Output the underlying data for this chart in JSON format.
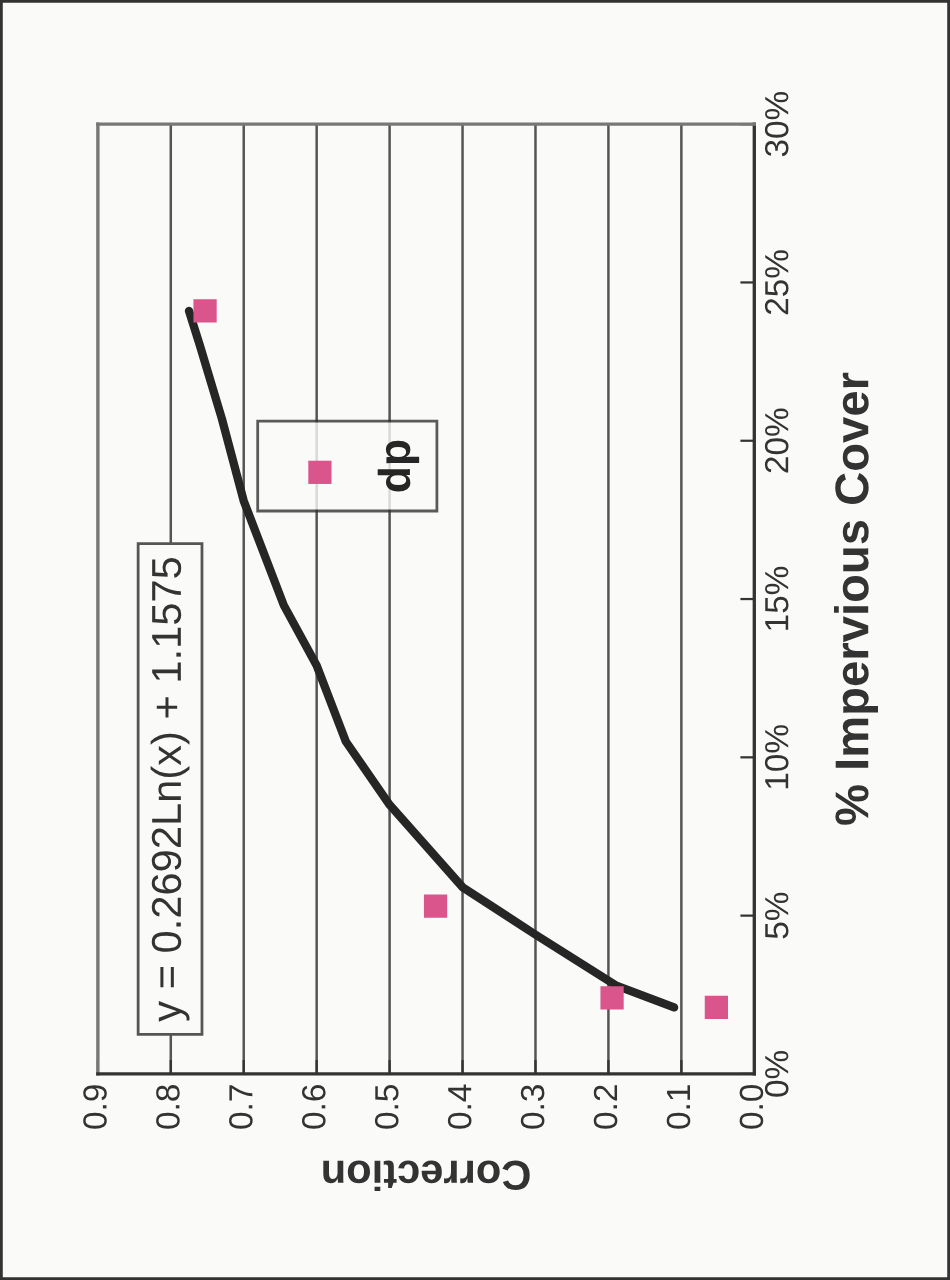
{
  "chart_data": {
    "type": "scatter",
    "xlabel": "Correction",
    "ylabel": "% Impervious Cover",
    "annotations": [
      "y = 0.2692Ln(x) + 1.1575"
    ],
    "series": [
      {
        "name": "dp",
        "color": "#d9558b",
        "marker": "square",
        "x": [
          0.753,
          0.437,
          0.195,
          0.052
        ],
        "values": [
          24.1,
          5.3,
          2.4,
          2.1
        ]
      },
      {
        "type": "line",
        "color": "#262626",
        "line_style": "solid",
        "x": [
          0.775,
          0.76,
          0.73,
          0.7,
          0.645,
          0.6,
          0.56,
          0.5,
          0.4,
          0.3,
          0.19,
          0.11
        ],
        "values": [
          24.1,
          23.0,
          20.7,
          18.1,
          14.8,
          12.9,
          10.5,
          8.5,
          5.9,
          4.4,
          2.8,
          2.1
        ]
      }
    ],
    "xlim": [
      0.9,
      0.0
    ],
    "xticks": [
      0.9,
      0.8,
      0.7,
      0.6,
      0.5,
      0.4,
      0.3,
      0.2,
      0.1,
      {
        "value": 0,
        "label": "0.0"
      }
    ],
    "ylim": [
      0,
      30
    ],
    "yticks": [
      {
        "value": 0,
        "label": "0%"
      },
      {
        "value": 5,
        "label": "5%"
      },
      {
        "value": 10,
        "label": "10%"
      },
      {
        "value": 15,
        "label": "15%"
      },
      {
        "value": 20,
        "label": "20%"
      },
      {
        "value": 25,
        "label": "25%"
      },
      {
        "value": 30,
        "label": "30%"
      }
    ],
    "grid": "x",
    "legend": "center"
  }
}
